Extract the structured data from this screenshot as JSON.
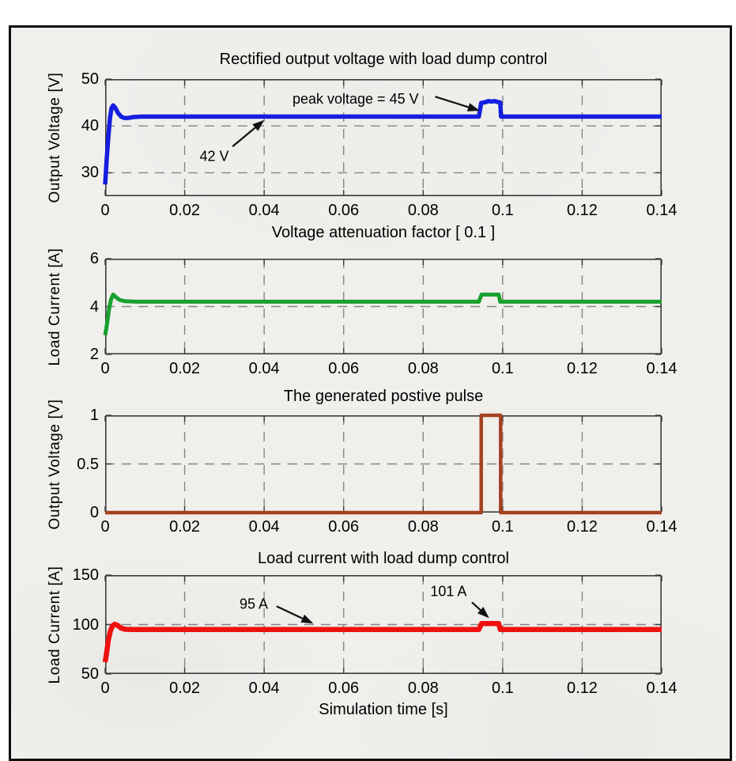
{
  "figure": {
    "page_bg": "#ffffff",
    "frame_bg": "#f0efec",
    "frame_border_color": "#0e0e0e",
    "axis_color": "#3a3a3a",
    "grid_color": "#858585",
    "text_color": "#000000",
    "annotation_color": "#111111"
  },
  "chart_data": [
    {
      "type": "line",
      "title": "Rectified output voltage with load dump control",
      "ylabel": "Output Voltage [V]",
      "xlim": [
        0,
        0.14
      ],
      "ylim": [
        25,
        50
      ],
      "xticks": [
        0,
        0.02,
        0.04,
        0.06,
        0.08,
        0.1,
        0.12,
        0.14
      ],
      "xtick_labels": [
        "0",
        "0.02",
        "0.04",
        "0.06",
        "0.08",
        "0.1",
        "0.12",
        "0.14"
      ],
      "yticks": [
        30,
        40,
        50
      ],
      "ytick_labels": [
        "30",
        "40",
        "50"
      ],
      "grid_x": [
        0.02,
        0.04,
        0.06,
        0.08,
        0.1,
        0.12
      ],
      "grid_y": [
        30,
        40
      ],
      "grid": true,
      "line_color": "#141ede",
      "line_width": 5.5,
      "series": [
        [
          0,
          27.5
        ],
        [
          0.0004,
          33
        ],
        [
          0.0008,
          37.5
        ],
        [
          0.0012,
          41.5
        ],
        [
          0.0016,
          43.8
        ],
        [
          0.002,
          44.4
        ],
        [
          0.0026,
          43.8
        ],
        [
          0.0032,
          42.8
        ],
        [
          0.004,
          42
        ],
        [
          0.0048,
          41.7
        ],
        [
          0.0058,
          41.7
        ],
        [
          0.007,
          41.9
        ],
        [
          0.009,
          42
        ],
        [
          0.094,
          42
        ],
        [
          0.0946,
          44.9
        ],
        [
          0.0952,
          45
        ],
        [
          0.0958,
          45.1
        ],
        [
          0.0964,
          45.3
        ],
        [
          0.0972,
          45.2
        ],
        [
          0.098,
          45.3
        ],
        [
          0.0988,
          45.1
        ],
        [
          0.0994,
          45
        ],
        [
          0.0996,
          42
        ],
        [
          0.14,
          42
        ]
      ],
      "annotations": [
        {
          "text": "peak voltage = 45 V",
          "x": 0.45,
          "y": 0.17,
          "arrow": {
            "x1": 0.593,
            "y1": 0.15,
            "x2": 0.673,
            "y2": 0.27
          }
        },
        {
          "text": "42 V",
          "x": 0.196,
          "y": 0.66,
          "arrow": {
            "x1": 0.229,
            "y1": 0.575,
            "x2": 0.286,
            "y2": 0.35
          }
        }
      ]
    },
    {
      "type": "line",
      "title": "Voltage attenuation factor [ 0.1 ]",
      "ylabel": "Load Current [A]",
      "xlim": [
        0,
        0.14
      ],
      "ylim": [
        2,
        6
      ],
      "xticks": [
        0,
        0.02,
        0.04,
        0.06,
        0.08,
        0.1,
        0.12,
        0.14
      ],
      "xtick_labels": [
        "0",
        "0.02",
        "0.04",
        "0.06",
        "0.08",
        "0.1",
        "0.12",
        "0.14"
      ],
      "yticks": [
        2,
        4,
        6
      ],
      "ytick_labels": [
        "2",
        "4",
        "6"
      ],
      "grid_x": [
        0.02,
        0.04,
        0.06,
        0.08,
        0.1,
        0.12
      ],
      "grid_y": [
        4
      ],
      "grid": true,
      "line_color": "#19a02d",
      "line_width": 5,
      "series": [
        [
          0,
          2.8
        ],
        [
          0.0005,
          3.3
        ],
        [
          0.001,
          3.9
        ],
        [
          0.0015,
          4.3
        ],
        [
          0.002,
          4.5
        ],
        [
          0.0028,
          4.38
        ],
        [
          0.0036,
          4.28
        ],
        [
          0.005,
          4.22
        ],
        [
          0.008,
          4.2
        ],
        [
          0.094,
          4.2
        ],
        [
          0.0947,
          4.5
        ],
        [
          0.099,
          4.5
        ],
        [
          0.0994,
          4.2
        ],
        [
          0.14,
          4.2
        ]
      ],
      "annotations": []
    },
    {
      "type": "line",
      "title": "The generated postive pulse",
      "ylabel": "Output Voltage [V]",
      "xlim": [
        0,
        0.14
      ],
      "ylim": [
        0,
        1
      ],
      "xticks": [
        0,
        0.02,
        0.04,
        0.06,
        0.08,
        0.1,
        0.12,
        0.14
      ],
      "xtick_labels": [
        "0",
        "0.02",
        "0.04",
        "0.06",
        "0.08",
        "0.1",
        "0.12",
        "0.14"
      ],
      "yticks": [
        0,
        0.5,
        1
      ],
      "ytick_labels": [
        "0",
        "0.5",
        "1"
      ],
      "grid_x": [
        0.02,
        0.04,
        0.06,
        0.08,
        0.1,
        0.12
      ],
      "grid_y": [
        0.5
      ],
      "grid": true,
      "line_color": "#a5411f",
      "line_width": 4.5,
      "series": [
        [
          0,
          0
        ],
        [
          0.0946,
          0
        ],
        [
          0.0946,
          1
        ],
        [
          0.0995,
          1
        ],
        [
          0.0995,
          0
        ],
        [
          0.14,
          0
        ]
      ],
      "annotations": []
    },
    {
      "type": "line",
      "title": "Load current with load dump control",
      "ylabel": "Load Current [A]",
      "xlabel": "Simulation time [s]",
      "xlim": [
        0,
        0.14
      ],
      "ylim": [
        50,
        150
      ],
      "xticks": [
        0,
        0.02,
        0.04,
        0.06,
        0.08,
        0.1,
        0.12,
        0.14
      ],
      "xtick_labels": [
        "0",
        "0.02",
        "0.04",
        "0.06",
        "0.08",
        "0.1",
        "0.12",
        "0.14"
      ],
      "yticks": [
        50,
        100,
        150
      ],
      "ytick_labels": [
        "50",
        "100",
        "150"
      ],
      "grid_x": [
        0.02,
        0.04,
        0.06,
        0.08,
        0.1,
        0.12
      ],
      "grid_y": [
        100
      ],
      "grid": true,
      "line_color": "#ef1010",
      "line_width": 6.5,
      "series": [
        [
          0,
          62
        ],
        [
          0.0004,
          72
        ],
        [
          0.0008,
          84
        ],
        [
          0.0013,
          93
        ],
        [
          0.0018,
          98.5
        ],
        [
          0.0024,
          100.3
        ],
        [
          0.0032,
          99
        ],
        [
          0.004,
          96.5
        ],
        [
          0.005,
          95.2
        ],
        [
          0.007,
          95
        ],
        [
          0.094,
          95
        ],
        [
          0.0947,
          101
        ],
        [
          0.099,
          101
        ],
        [
          0.0994,
          95
        ],
        [
          0.14,
          95
        ]
      ],
      "annotations": [
        {
          "text": "95 A",
          "x": 0.267,
          "y": 0.29,
          "arrow": {
            "x1": 0.308,
            "y1": 0.315,
            "x2": 0.374,
            "y2": 0.49
          }
        },
        {
          "text": "101 A",
          "x": 0.617,
          "y": 0.165,
          "arrow": {
            "x1": 0.659,
            "y1": 0.275,
            "x2": 0.69,
            "y2": 0.435
          }
        }
      ]
    }
  ]
}
